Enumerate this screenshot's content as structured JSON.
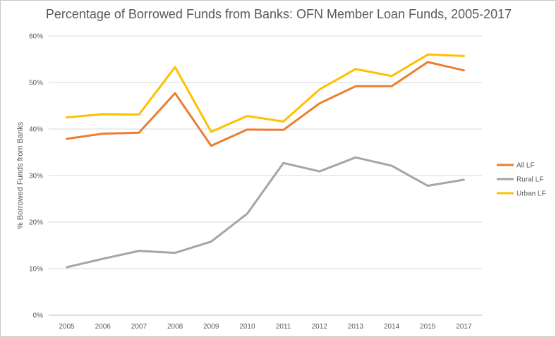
{
  "chart_data": {
    "type": "line",
    "title": "Percentage of Borrowed Funds from Banks: OFN Member Loan Funds, 2005-2017",
    "ylabel": "% Borrowed Funds from Banks",
    "xlabel": "",
    "categories": [
      "2005",
      "2006",
      "2007",
      "2008",
      "2009",
      "2010",
      "2011",
      "2012",
      "2013",
      "2014",
      "2015",
      "2017"
    ],
    "ylim": [
      0,
      60
    ],
    "yticks": [
      0,
      10,
      20,
      30,
      40,
      50,
      60
    ],
    "ytick_labels": [
      "0%",
      "10%",
      "20%",
      "30%",
      "40%",
      "50%",
      "60%"
    ],
    "grid": true,
    "legend_position": "right",
    "series": [
      {
        "name": "All LF",
        "color": "#ED7D31",
        "values": [
          37.9,
          39.0,
          39.2,
          47.7,
          36.4,
          39.9,
          39.8,
          45.5,
          49.2,
          49.2,
          54.4,
          52.6
        ]
      },
      {
        "name": "Rural LF",
        "color": "#A5A5A5",
        "values": [
          10.3,
          12.1,
          13.8,
          13.4,
          15.8,
          21.8,
          32.7,
          30.9,
          33.9,
          32.1,
          27.8,
          29.1
        ]
      },
      {
        "name": "Urban LF",
        "color": "#FFC000",
        "values": [
          42.5,
          43.2,
          43.1,
          53.3,
          39.4,
          42.8,
          41.6,
          48.5,
          52.9,
          51.4,
          56.0,
          55.7
        ]
      }
    ]
  }
}
